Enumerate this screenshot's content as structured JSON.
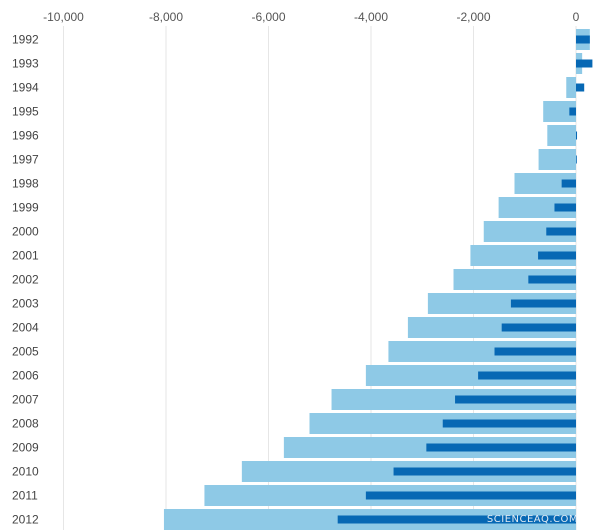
{
  "chart_data": {
    "type": "bar",
    "orientation": "horizontal",
    "categories": [
      "1992",
      "1993",
      "1994",
      "1995",
      "1996",
      "1997",
      "1998",
      "1999",
      "2000",
      "2001",
      "2002",
      "2003",
      "2004",
      "2005",
      "2006",
      "2007",
      "2008",
      "2009",
      "2010",
      "2011",
      "2012"
    ],
    "series": [
      {
        "color": "#8ec9e6",
        "values": [
          270,
          120,
          -190,
          -640,
          -560,
          -730,
          -1200,
          -1510,
          -1800,
          -2060,
          -2390,
          -2890,
          -3280,
          -3660,
          -4100,
          -4770,
          -5200,
          -5700,
          -6520,
          -7250,
          -8040
        ]
      },
      {
        "color": "#0768b4",
        "values": [
          270,
          320,
          160,
          -130,
          20,
          10,
          -280,
          -420,
          -580,
          -740,
          -930,
          -1270,
          -1450,
          -1590,
          -1910,
          -2360,
          -2600,
          -2920,
          -3560,
          -4100,
          -4650
        ]
      }
    ],
    "xticks": [
      "-10,000",
      "-8,000",
      "-6,000",
      "-4,000",
      "-2,000",
      "0"
    ],
    "xtick_values": [
      -10000,
      -8000,
      -6000,
      -4000,
      -2000,
      0
    ],
    "xlim": [
      -10600,
      320
    ],
    "grid": true,
    "legend": "none",
    "title": "",
    "xlabel": "",
    "ylabel": ""
  },
  "watermark": "SCIENCEAQ.COM"
}
